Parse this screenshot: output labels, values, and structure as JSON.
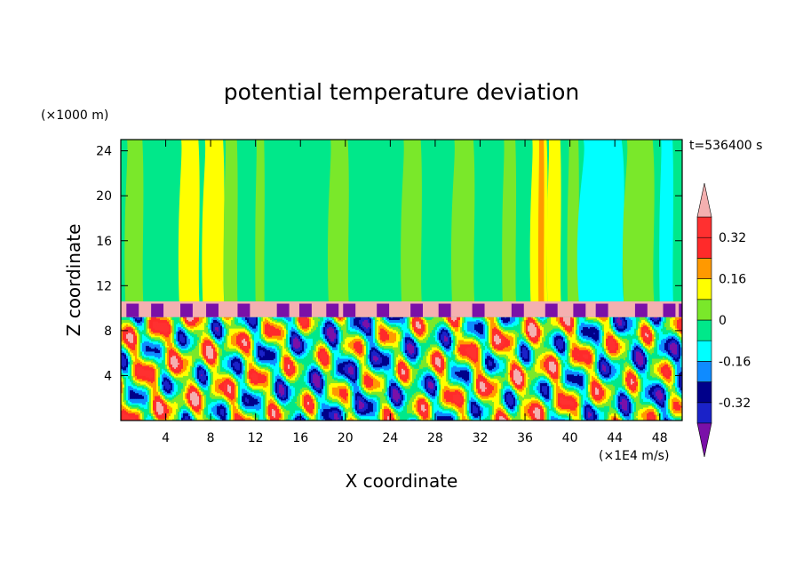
{
  "chart_data": {
    "type": "heatmap",
    "title": "potential temperature deviation",
    "xlabel": "X coordinate",
    "ylabel": "Z coordinate",
    "x_unit": "(×1E4 m/s)",
    "y_unit": "(×1000 m)",
    "time_label": "t=536400 s",
    "xlim": [
      0,
      50
    ],
    "ylim": [
      0,
      25
    ],
    "x_ticks": [
      4,
      8,
      12,
      16,
      20,
      24,
      28,
      32,
      36,
      40,
      44,
      48
    ],
    "y_ticks": [
      4,
      8,
      12,
      16,
      20,
      24
    ],
    "colorbar": {
      "levels": [
        -0.4,
        -0.32,
        -0.24,
        -0.16,
        -0.08,
        0,
        0.08,
        0.16,
        0.24,
        0.32,
        0.4
      ],
      "colors": [
        "#7a10a8",
        "#1a22c8",
        "#00008a",
        "#0f8bff",
        "#00ffff",
        "#00e88a",
        "#7ae82a",
        "#ffff00",
        "#ff9900",
        "#ff2a2a",
        "#ff3030",
        "#f4b0b0"
      ],
      "tick_labels": [
        "0.32",
        "0.16",
        "0",
        "-0.16",
        "-0.32"
      ],
      "tick_values": [
        0.32,
        0.16,
        0,
        -0.16,
        -0.32
      ],
      "extend": "both"
    },
    "regions": {
      "upper_background": "#00e88a",
      "tropopause_band": {
        "z_range": [
          9.2,
          10.6
        ],
        "color": "#f4b0b0"
      },
      "lower_turbulent_layer": {
        "z_range": [
          0,
          9.2
        ]
      }
    },
    "upper_bands": [
      {
        "x": [
          5.2,
          7.0
        ],
        "color": "#ffff00"
      },
      {
        "x": [
          7.3,
          9.2
        ],
        "color": "#ffff00"
      },
      {
        "x": [
          9.2,
          10.4
        ],
        "color": "#7ae82a"
      },
      {
        "x": [
          0.4,
          2.0
        ],
        "color": "#7ae82a"
      },
      {
        "x": [
          12.0,
          12.8
        ],
        "color": "#7ae82a"
      },
      {
        "x": [
          18.5,
          20.3
        ],
        "color": "#7ae82a"
      },
      {
        "x": [
          25.0,
          26.8
        ],
        "color": "#7ae82a"
      },
      {
        "x": [
          29.5,
          31.5
        ],
        "color": "#7ae82a"
      },
      {
        "x": [
          34.0,
          35.2
        ],
        "color": "#7ae82a"
      },
      {
        "x": [
          36.5,
          38.0
        ],
        "color": "#ffff00"
      },
      {
        "x": [
          37.2,
          37.7
        ],
        "color": "#ff9900"
      },
      {
        "x": [
          38.0,
          39.2
        ],
        "color": "#ffff00"
      },
      {
        "x": [
          39.8,
          40.8
        ],
        "color": "#7ae82a"
      },
      {
        "x": [
          40.8,
          44.8
        ],
        "color": "#00ffff"
      },
      {
        "x": [
          44.8,
          47.5
        ],
        "color": "#7ae82a"
      },
      {
        "x": [
          48.0,
          49.2
        ],
        "color": "#00ffff"
      }
    ]
  }
}
